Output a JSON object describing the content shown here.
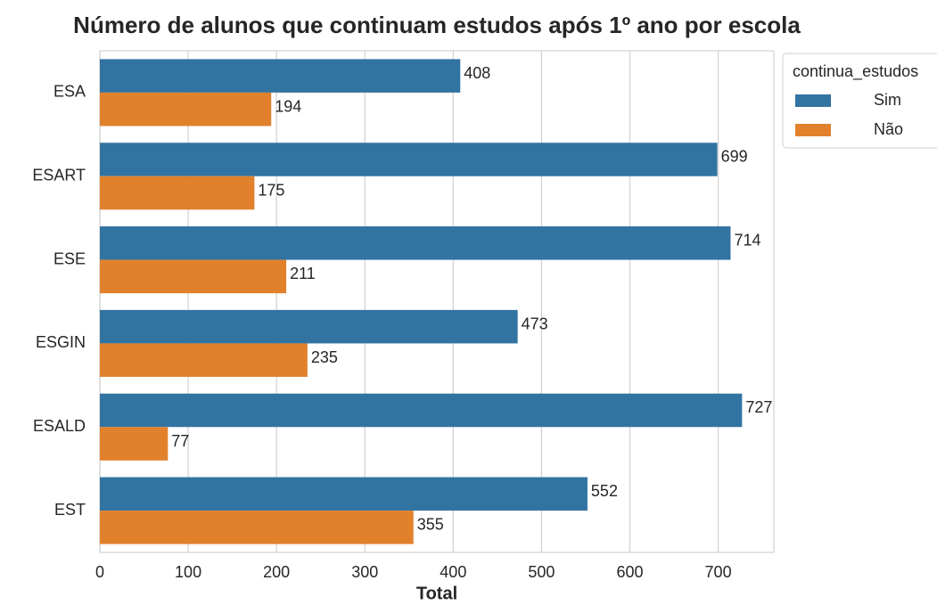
{
  "chart_data": {
    "type": "barh",
    "title": "Número de alunos que continuam estudos após 1º ano por escola",
    "xlabel": "Total",
    "categories": [
      "ESA",
      "ESART",
      "ESE",
      "ESGIN",
      "ESALD",
      "EST"
    ],
    "series": [
      {
        "name": "Sim",
        "color": "#3274a1",
        "values": [
          408,
          699,
          714,
          473,
          727,
          552
        ]
      },
      {
        "name": "Não",
        "color": "#e1812c",
        "values": [
          194,
          175,
          211,
          235,
          77,
          355
        ]
      }
    ],
    "legend_title": "continua_estudos",
    "legend": "upper right outside",
    "xlim": [
      0,
      763
    ],
    "xticks": [
      0,
      100,
      200,
      300,
      400,
      500,
      600,
      700
    ],
    "grid": true
  }
}
